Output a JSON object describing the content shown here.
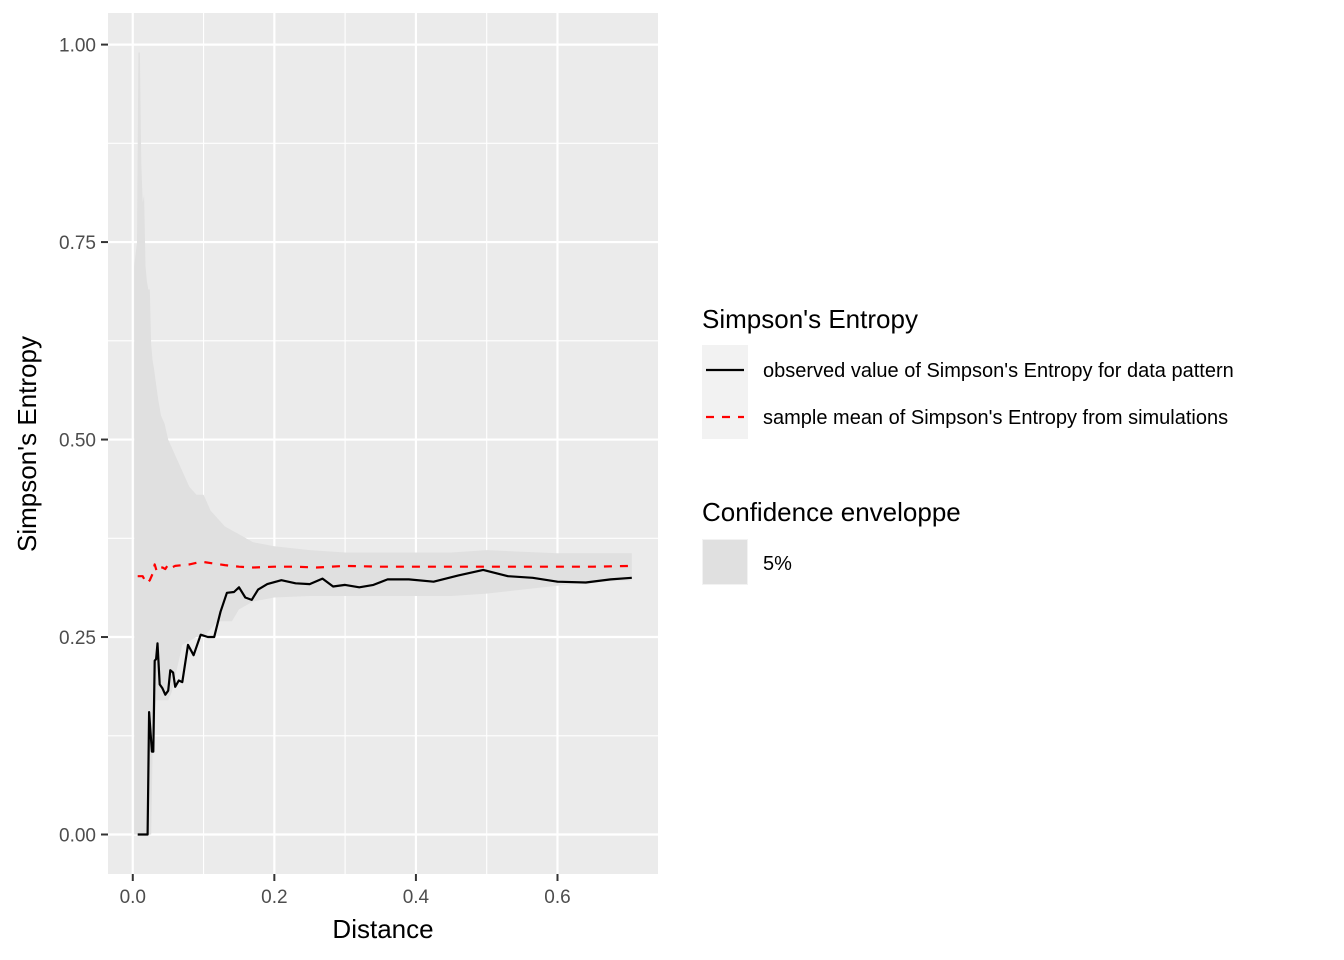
{
  "chart_data": {
    "type": "line",
    "xlabel": "Distance",
    "ylabel": "Simpson's Entropy",
    "xlim": [
      -0.035,
      0.742
    ],
    "ylim": [
      -0.05,
      1.04
    ],
    "x_ticks": [
      0.0,
      0.2,
      0.4,
      0.6
    ],
    "x_tick_labels": [
      "0.0",
      "0.2",
      "0.4",
      "0.6"
    ],
    "y_ticks": [
      0.0,
      0.25,
      0.5,
      0.75,
      1.0
    ],
    "y_tick_labels": [
      "0.00",
      "0.25",
      "0.50",
      "0.75",
      "1.00"
    ],
    "grid": true,
    "legend_placement": "right",
    "colors": {
      "panel": "#ebebeb",
      "grid": "#ffffff",
      "envelope": "#e0e0e0",
      "observed": "#000000",
      "mean": "#ff0000"
    },
    "series": [
      {
        "name": "observed value of Simpson's Entropy for data pattern",
        "style": "solid",
        "color": "#000000",
        "x": [
          0.007,
          0.014,
          0.021,
          0.023,
          0.027,
          0.029,
          0.031,
          0.033,
          0.035,
          0.038,
          0.042,
          0.046,
          0.05,
          0.053,
          0.057,
          0.06,
          0.065,
          0.07,
          0.078,
          0.086,
          0.096,
          0.106,
          0.115,
          0.124,
          0.133,
          0.143,
          0.15,
          0.159,
          0.168,
          0.177,
          0.19,
          0.21,
          0.23,
          0.25,
          0.268,
          0.283,
          0.3,
          0.32,
          0.34,
          0.36,
          0.39,
          0.425,
          0.46,
          0.495,
          0.53,
          0.565,
          0.6,
          0.64,
          0.675,
          0.705
        ],
        "y": [
          0.0,
          0.0,
          0.0,
          0.155,
          0.105,
          0.105,
          0.22,
          0.222,
          0.242,
          0.19,
          0.185,
          0.177,
          0.182,
          0.208,
          0.205,
          0.187,
          0.195,
          0.193,
          0.24,
          0.227,
          0.253,
          0.25,
          0.25,
          0.282,
          0.306,
          0.307,
          0.313,
          0.3,
          0.297,
          0.31,
          0.317,
          0.322,
          0.318,
          0.317,
          0.324,
          0.314,
          0.316,
          0.313,
          0.316,
          0.323,
          0.323,
          0.32,
          0.328,
          0.335,
          0.327,
          0.325,
          0.32,
          0.319,
          0.323,
          0.325
        ]
      },
      {
        "name": "sample mean of Simpson's Entropy from simulations",
        "style": "dashed",
        "color": "#ff0000",
        "x": [
          0.007,
          0.014,
          0.017,
          0.02,
          0.024,
          0.028,
          0.031,
          0.034,
          0.038,
          0.042,
          0.046,
          0.05,
          0.055,
          0.06,
          0.07,
          0.08,
          0.09,
          0.1,
          0.115,
          0.13,
          0.15,
          0.17,
          0.2,
          0.23,
          0.26,
          0.3,
          0.35,
          0.4,
          0.45,
          0.5,
          0.55,
          0.6,
          0.65,
          0.705
        ],
        "y": [
          0.327,
          0.327,
          0.322,
          0.318,
          0.322,
          0.33,
          0.342,
          0.333,
          0.338,
          0.338,
          0.336,
          0.342,
          0.338,
          0.34,
          0.341,
          0.342,
          0.344,
          0.345,
          0.343,
          0.341,
          0.339,
          0.338,
          0.339,
          0.339,
          0.338,
          0.34,
          0.339,
          0.339,
          0.339,
          0.339,
          0.339,
          0.339,
          0.339,
          0.34
        ]
      }
    ],
    "envelope": {
      "name": "5%",
      "x": [
        0.002,
        0.006,
        0.008,
        0.01,
        0.012,
        0.014,
        0.016,
        0.018,
        0.02,
        0.022,
        0.024,
        0.026,
        0.028,
        0.03,
        0.033,
        0.036,
        0.04,
        0.045,
        0.05,
        0.055,
        0.06,
        0.065,
        0.07,
        0.08,
        0.09,
        0.1,
        0.11,
        0.12,
        0.13,
        0.14,
        0.15,
        0.17,
        0.2,
        0.25,
        0.3,
        0.35,
        0.4,
        0.45,
        0.5,
        0.55,
        0.6,
        0.65,
        0.705
      ],
      "lower": [
        0.0,
        0.0,
        0.0,
        0.0,
        0.0,
        0.0,
        0.0,
        0.0,
        0.0,
        0.0,
        0.0,
        0.0,
        0.105,
        0.105,
        0.17,
        0.17,
        0.17,
        0.17,
        0.17,
        0.18,
        0.2,
        0.22,
        0.24,
        0.245,
        0.25,
        0.25,
        0.26,
        0.27,
        0.27,
        0.27,
        0.285,
        0.295,
        0.3,
        0.302,
        0.302,
        0.302,
        0.302,
        0.302,
        0.305,
        0.31,
        0.315,
        0.32,
        0.322
      ],
      "upper": [
        0.72,
        0.75,
        0.99,
        0.99,
        0.85,
        0.8,
        0.81,
        0.72,
        0.7,
        0.69,
        0.69,
        0.62,
        0.6,
        0.59,
        0.57,
        0.55,
        0.53,
        0.52,
        0.5,
        0.49,
        0.48,
        0.47,
        0.46,
        0.44,
        0.43,
        0.43,
        0.41,
        0.4,
        0.39,
        0.385,
        0.38,
        0.37,
        0.365,
        0.36,
        0.357,
        0.357,
        0.357,
        0.357,
        0.36,
        0.358,
        0.356,
        0.356,
        0.356
      ]
    },
    "legend": {
      "line_title": "Simpson's Entropy",
      "line_items": [
        "observed value of Simpson's Entropy for data pattern",
        "sample mean of Simpson's Entropy from simulations"
      ],
      "fill_title": "Confidence enveloppe",
      "fill_items": [
        "5%"
      ]
    }
  }
}
